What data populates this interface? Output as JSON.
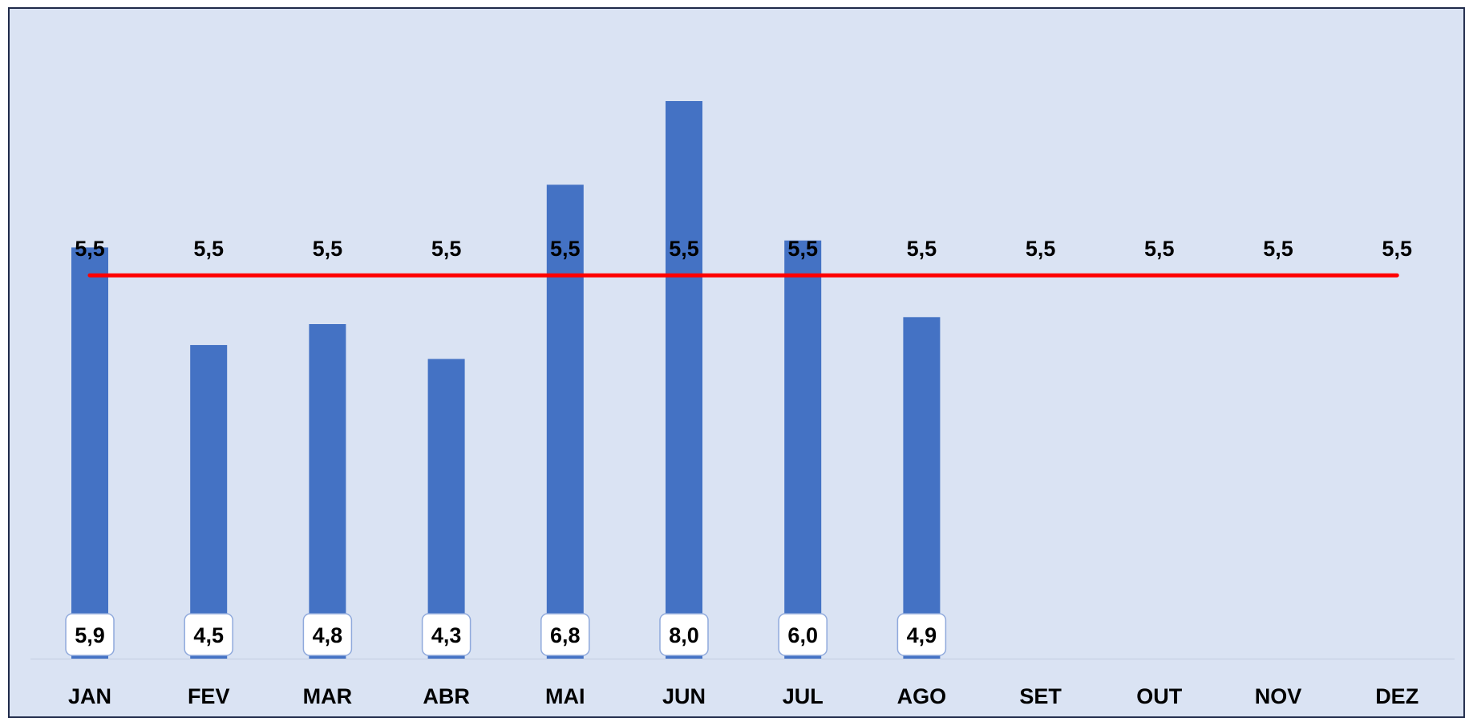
{
  "chart_data": {
    "type": "bar",
    "categories": [
      "JAN",
      "FEV",
      "MAR",
      "ABR",
      "MAI",
      "JUN",
      "JUL",
      "AGO",
      "SET",
      "OUT",
      "NOV",
      "DEZ"
    ],
    "series": [
      {
        "kind": "bar",
        "values": [
          5.9,
          4.5,
          4.8,
          4.3,
          6.8,
          8.0,
          6.0,
          4.9,
          null,
          null,
          null,
          null
        ],
        "labels": [
          "5,9",
          "4,5",
          "4,8",
          "4,3",
          "6,8",
          "8,0",
          "6,0",
          "4,9",
          "",
          "",
          "",
          ""
        ],
        "color": "#4472c4"
      },
      {
        "kind": "line",
        "values": [
          5.5,
          5.5,
          5.5,
          5.5,
          5.5,
          5.5,
          5.5,
          5.5,
          5.5,
          5.5,
          5.5,
          5.5
        ],
        "labels": [
          "5,5",
          "5,5",
          "5,5",
          "5,5",
          "5,5",
          "5,5",
          "5,5",
          "5,5",
          "5,5",
          "5,5",
          "5,5",
          "5,5"
        ],
        "color": "#ff0000"
      }
    ],
    "ylim": [
      0,
      8.0
    ],
    "grid": false,
    "legend": "none",
    "background": "#dae3f3",
    "title": "",
    "xlabel": "",
    "ylabel": ""
  }
}
